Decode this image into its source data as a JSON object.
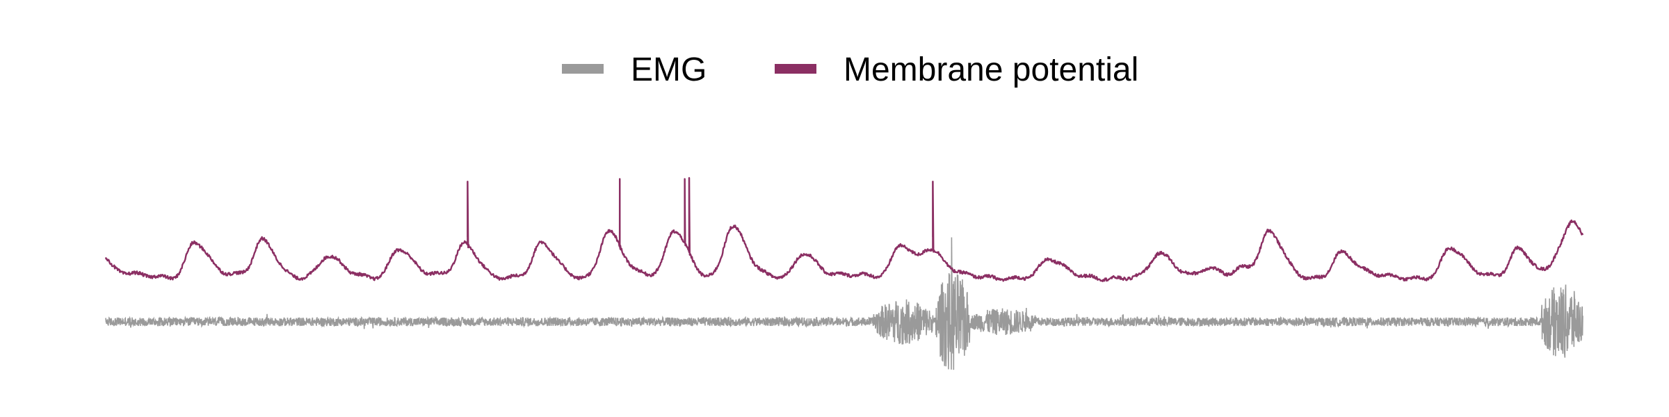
{
  "chart_data": {
    "type": "line",
    "title": "",
    "xlabel": "",
    "ylabel": "",
    "axes_visible": false,
    "grid": false,
    "legend_placement": "top-center",
    "x_range": [
      0,
      100
    ],
    "series": [
      {
        "name": "EMG",
        "color": "#9a9a9a",
        "role": "emg"
      },
      {
        "name": "Membrane potential",
        "color": "#8b2f63",
        "role": "vm"
      }
    ],
    "membrane_potential": {
      "baseline": 0,
      "start_level": 0.38,
      "end_level": 0.55,
      "depolarizations": [
        {
          "t": 6.0,
          "amp": 0.68
        },
        {
          "t": 10.6,
          "amp": 0.7
        },
        {
          "t": 15.0,
          "amp": 0.36
        },
        {
          "t": 19.8,
          "amp": 0.56
        },
        {
          "t": 24.3,
          "amp": 0.62
        },
        {
          "t": 29.5,
          "amp": 0.6
        },
        {
          "t": 34.0,
          "amp": 0.88
        },
        {
          "t": 38.5,
          "amp": 0.88
        },
        {
          "t": 42.4,
          "amp": 0.93
        },
        {
          "t": 47.2,
          "amp": 0.48
        },
        {
          "t": 53.8,
          "amp": 0.65
        },
        {
          "t": 55.8,
          "amp": 0.48
        },
        {
          "t": 63.8,
          "amp": 0.3
        },
        {
          "t": 71.3,
          "amp": 0.4
        },
        {
          "t": 74.6,
          "amp": 0.2
        },
        {
          "t": 77.0,
          "amp": 0.16
        },
        {
          "t": 78.7,
          "amp": 0.14
        },
        {
          "t": 78.8,
          "amp": 0.66
        },
        {
          "t": 83.6,
          "amp": 0.46
        },
        {
          "t": 91.0,
          "amp": 0.54
        },
        {
          "t": 95.6,
          "amp": 0.56
        },
        {
          "t": 98.5,
          "amp": 0.45
        },
        {
          "t": 99.5,
          "amp": 0.75
        }
      ],
      "spikes": [
        {
          "t": 24.5,
          "peak": 1.8
        },
        {
          "t": 34.8,
          "peak": 1.85
        },
        {
          "t": 39.2,
          "peak": 1.85
        },
        {
          "t": 39.5,
          "peak": 1.87
        },
        {
          "t": 56.0,
          "peak": 1.8
        }
      ]
    },
    "emg": {
      "baseline_noise": 0.08,
      "bursts": [
        {
          "t_start": 52.0,
          "t_end": 56.0,
          "amp": 0.42
        },
        {
          "t_start": 56.2,
          "t_end": 58.5,
          "amp": 0.95
        },
        {
          "t_start": 58.5,
          "t_end": 63.0,
          "amp": 0.25
        },
        {
          "t_start": 97.2,
          "t_end": 100.0,
          "amp": 0.7
        }
      ]
    }
  }
}
